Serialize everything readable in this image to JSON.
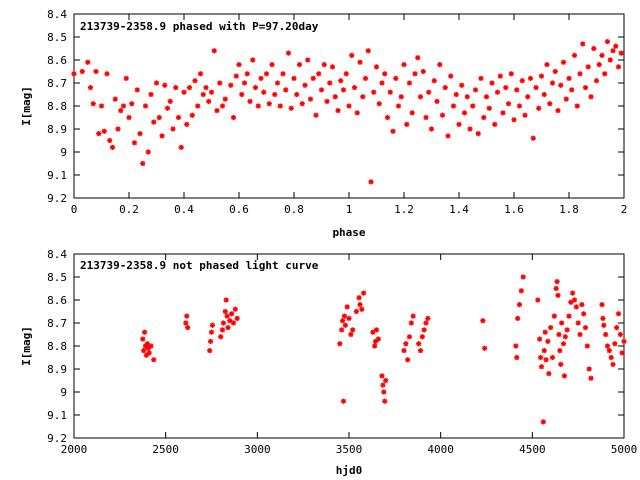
{
  "chart_data": [
    {
      "type": "scatter",
      "title": "213739-2358.9 phased with P=97.20day",
      "xlabel": "phase",
      "ylabel": "I[mag]",
      "xlim": [
        0,
        2
      ],
      "ylim": [
        9.2,
        8.4
      ],
      "y_inverted": true,
      "grid": false,
      "marker_color": "#ff0000",
      "x_ticks": [
        "0",
        "0.2",
        "0.4",
        "0.6",
        "0.8",
        "1",
        "1.2",
        "1.4",
        "1.6",
        "1.8",
        "2"
      ],
      "y_ticks": [
        "8.4",
        "8.5",
        "8.6",
        "8.7",
        "8.8",
        "8.9",
        "9",
        "9.1",
        "9.2"
      ],
      "points": [
        [
          0.0,
          8.66
        ],
        [
          0.03,
          8.65
        ],
        [
          0.05,
          8.61
        ],
        [
          0.06,
          8.72
        ],
        [
          0.07,
          8.79
        ],
        [
          0.08,
          8.65
        ],
        [
          0.09,
          8.92
        ],
        [
          0.1,
          8.8
        ],
        [
          0.11,
          8.91
        ],
        [
          0.12,
          8.66
        ],
        [
          0.13,
          8.95
        ],
        [
          0.14,
          8.98
        ],
        [
          0.15,
          8.77
        ],
        [
          0.16,
          8.9
        ],
        [
          0.17,
          8.82
        ],
        [
          0.18,
          8.8
        ],
        [
          0.19,
          8.68
        ],
        [
          0.2,
          8.85
        ],
        [
          0.21,
          8.79
        ],
        [
          0.22,
          8.96
        ],
        [
          0.23,
          8.73
        ],
        [
          0.24,
          8.92
        ],
        [
          0.25,
          9.05
        ],
        [
          0.26,
          8.8
        ],
        [
          0.27,
          9.0
        ],
        [
          0.28,
          8.75
        ],
        [
          0.29,
          8.87
        ],
        [
          0.3,
          8.7
        ],
        [
          0.31,
          8.85
        ],
        [
          0.32,
          8.93
        ],
        [
          0.33,
          8.71
        ],
        [
          0.34,
          8.81
        ],
        [
          0.35,
          8.78
        ],
        [
          0.36,
          8.9
        ],
        [
          0.37,
          8.72
        ],
        [
          0.38,
          8.85
        ],
        [
          0.39,
          8.98
        ],
        [
          0.4,
          8.74
        ],
        [
          0.41,
          8.88
        ],
        [
          0.42,
          8.72
        ],
        [
          0.43,
          8.84
        ],
        [
          0.44,
          8.69
        ],
        [
          0.45,
          8.8
        ],
        [
          0.46,
          8.66
        ],
        [
          0.47,
          8.75
        ],
        [
          0.48,
          8.72
        ],
        [
          0.49,
          8.78
        ],
        [
          0.5,
          8.74
        ],
        [
          0.51,
          8.56
        ],
        [
          0.52,
          8.82
        ],
        [
          0.53,
          8.7
        ],
        [
          0.54,
          8.8
        ],
        [
          0.55,
          8.77
        ],
        [
          0.57,
          8.71
        ],
        [
          0.58,
          8.85
        ],
        [
          0.59,
          8.67
        ],
        [
          0.6,
          8.62
        ],
        [
          0.61,
          8.75
        ],
        [
          0.62,
          8.7
        ],
        [
          0.63,
          8.66
        ],
        [
          0.64,
          8.78
        ],
        [
          0.65,
          8.6
        ],
        [
          0.66,
          8.72
        ],
        [
          0.67,
          8.8
        ],
        [
          0.68,
          8.68
        ],
        [
          0.69,
          8.74
        ],
        [
          0.7,
          8.66
        ],
        [
          0.71,
          8.79
        ],
        [
          0.72,
          8.62
        ],
        [
          0.73,
          8.75
        ],
        [
          0.74,
          8.7
        ],
        [
          0.75,
          8.8
        ],
        [
          0.76,
          8.66
        ],
        [
          0.77,
          8.73
        ],
        [
          0.78,
          8.57
        ],
        [
          0.79,
          8.81
        ],
        [
          0.8,
          8.68
        ],
        [
          0.81,
          8.75
        ],
        [
          0.82,
          8.62
        ],
        [
          0.83,
          8.79
        ],
        [
          0.84,
          8.71
        ],
        [
          0.85,
          8.6
        ],
        [
          0.86,
          8.77
        ],
        [
          0.87,
          8.68
        ],
        [
          0.88,
          8.84
        ],
        [
          0.89,
          8.66
        ],
        [
          0.9,
          8.73
        ],
        [
          0.91,
          8.62
        ],
        [
          0.92,
          8.78
        ],
        [
          0.93,
          8.7
        ],
        [
          0.94,
          8.63
        ],
        [
          0.95,
          8.76
        ],
        [
          0.96,
          8.82
        ],
        [
          0.97,
          8.69
        ],
        [
          0.98,
          8.73
        ],
        [
          0.99,
          8.66
        ],
        [
          1.0,
          8.8
        ],
        [
          1.01,
          8.58
        ],
        [
          1.02,
          8.72
        ],
        [
          1.03,
          8.83
        ],
        [
          1.04,
          8.61
        ],
        [
          1.05,
          8.76
        ],
        [
          1.06,
          8.68
        ],
        [
          1.07,
          8.56
        ],
        [
          1.08,
          9.13
        ],
        [
          1.09,
          8.74
        ],
        [
          1.1,
          8.63
        ],
        [
          1.11,
          8.79
        ],
        [
          1.12,
          8.7
        ],
        [
          1.13,
          8.66
        ],
        [
          1.14,
          8.85
        ],
        [
          1.15,
          8.74
        ],
        [
          1.16,
          8.91
        ],
        [
          1.17,
          8.68
        ],
        [
          1.18,
          8.8
        ],
        [
          1.19,
          8.76
        ],
        [
          1.2,
          8.62
        ],
        [
          1.21,
          8.88
        ],
        [
          1.22,
          8.7
        ],
        [
          1.23,
          8.83
        ],
        [
          1.24,
          8.66
        ],
        [
          1.25,
          8.59
        ],
        [
          1.26,
          8.76
        ],
        [
          1.27,
          8.65
        ],
        [
          1.28,
          8.85
        ],
        [
          1.29,
          8.74
        ],
        [
          1.3,
          8.9
        ],
        [
          1.31,
          8.69
        ],
        [
          1.32,
          8.78
        ],
        [
          1.33,
          8.62
        ],
        [
          1.34,
          8.84
        ],
        [
          1.35,
          8.72
        ],
        [
          1.36,
          8.93
        ],
        [
          1.37,
          8.67
        ],
        [
          1.38,
          8.8
        ],
        [
          1.39,
          8.75
        ],
        [
          1.4,
          8.88
        ],
        [
          1.41,
          8.71
        ],
        [
          1.42,
          8.83
        ],
        [
          1.43,
          8.76
        ],
        [
          1.44,
          8.9
        ],
        [
          1.45,
          8.8
        ],
        [
          1.46,
          8.73
        ],
        [
          1.47,
          8.92
        ],
        [
          1.48,
          8.68
        ],
        [
          1.49,
          8.85
        ],
        [
          1.5,
          8.76
        ],
        [
          1.51,
          8.81
        ],
        [
          1.52,
          8.7
        ],
        [
          1.53,
          8.88
        ],
        [
          1.54,
          8.74
        ],
        [
          1.55,
          8.67
        ],
        [
          1.56,
          8.83
        ],
        [
          1.57,
          8.72
        ],
        [
          1.58,
          8.79
        ],
        [
          1.59,
          8.66
        ],
        [
          1.6,
          8.86
        ],
        [
          1.61,
          8.73
        ],
        [
          1.62,
          8.8
        ],
        [
          1.63,
          8.69
        ],
        [
          1.64,
          8.84
        ],
        [
          1.65,
          8.76
        ],
        [
          1.66,
          8.68
        ],
        [
          1.67,
          8.94
        ],
        [
          1.68,
          8.72
        ],
        [
          1.69,
          8.81
        ],
        [
          1.7,
          8.67
        ],
        [
          1.71,
          8.75
        ],
        [
          1.72,
          8.62
        ],
        [
          1.73,
          8.79
        ],
        [
          1.74,
          8.7
        ],
        [
          1.75,
          8.65
        ],
        [
          1.76,
          8.82
        ],
        [
          1.77,
          8.71
        ],
        [
          1.78,
          8.61
        ],
        [
          1.79,
          8.77
        ],
        [
          1.8,
          8.68
        ],
        [
          1.81,
          8.73
        ],
        [
          1.82,
          8.58
        ],
        [
          1.83,
          8.8
        ],
        [
          1.84,
          8.66
        ],
        [
          1.85,
          8.53
        ],
        [
          1.86,
          8.72
        ],
        [
          1.87,
          8.63
        ],
        [
          1.88,
          8.76
        ],
        [
          1.89,
          8.55
        ],
        [
          1.9,
          8.69
        ],
        [
          1.91,
          8.62
        ],
        [
          1.92,
          8.58
        ],
        [
          1.93,
          8.66
        ],
        [
          1.94,
          8.52
        ],
        [
          1.95,
          8.6
        ],
        [
          1.96,
          8.56
        ],
        [
          1.97,
          8.54
        ],
        [
          1.98,
          8.63
        ],
        [
          1.99,
          8.57
        ]
      ]
    },
    {
      "type": "scatter",
      "title": "213739-2358.9 not phased light curve",
      "xlabel": "hjd0",
      "ylabel": "I[mag]",
      "xlim": [
        2000,
        5000
      ],
      "ylim": [
        9.2,
        8.4
      ],
      "y_inverted": true,
      "grid": false,
      "marker_color": "#ff0000",
      "x_ticks": [
        "2000",
        "2500",
        "3000",
        "3500",
        "4000",
        "4500",
        "5000"
      ],
      "y_ticks": [
        "8.4",
        "8.5",
        "8.6",
        "8.7",
        "8.8",
        "8.9",
        "9",
        "9.1",
        "9.2"
      ],
      "points": [
        [
          2375,
          8.77
        ],
        [
          2380,
          8.82
        ],
        [
          2385,
          8.74
        ],
        [
          2390,
          8.8
        ],
        [
          2395,
          8.84
        ],
        [
          2400,
          8.79
        ],
        [
          2405,
          8.81
        ],
        [
          2410,
          8.83
        ],
        [
          2420,
          8.8
        ],
        [
          2435,
          8.86
        ],
        [
          2610,
          8.7
        ],
        [
          2615,
          8.67
        ],
        [
          2620,
          8.72
        ],
        [
          2740,
          8.82
        ],
        [
          2745,
          8.78
        ],
        [
          2750,
          8.74
        ],
        [
          2755,
          8.71
        ],
        [
          2800,
          8.76
        ],
        [
          2810,
          8.73
        ],
        [
          2815,
          8.7
        ],
        [
          2825,
          8.65
        ],
        [
          2830,
          8.6
        ],
        [
          2835,
          8.67
        ],
        [
          2840,
          8.72
        ],
        [
          2850,
          8.69
        ],
        [
          2860,
          8.66
        ],
        [
          2870,
          8.7
        ],
        [
          2880,
          8.64
        ],
        [
          2890,
          8.68
        ],
        [
          3450,
          8.79
        ],
        [
          3460,
          8.73
        ],
        [
          3465,
          8.69
        ],
        [
          3470,
          9.04
        ],
        [
          3475,
          8.67
        ],
        [
          3480,
          8.71
        ],
        [
          3490,
          8.63
        ],
        [
          3500,
          8.68
        ],
        [
          3510,
          8.75
        ],
        [
          3520,
          8.73
        ],
        [
          3540,
          8.65
        ],
        [
          3555,
          8.59
        ],
        [
          3560,
          8.62
        ],
        [
          3570,
          8.64
        ],
        [
          3580,
          8.57
        ],
        [
          3630,
          8.74
        ],
        [
          3640,
          8.8
        ],
        [
          3645,
          8.78
        ],
        [
          3650,
          8.73
        ],
        [
          3660,
          8.77
        ],
        [
          3680,
          8.93
        ],
        [
          3685,
          8.97
        ],
        [
          3690,
          9.0
        ],
        [
          3695,
          9.04
        ],
        [
          3700,
          8.95
        ],
        [
          3800,
          8.82
        ],
        [
          3810,
          8.79
        ],
        [
          3820,
          8.86
        ],
        [
          3830,
          8.76
        ],
        [
          3840,
          8.7
        ],
        [
          3850,
          8.67
        ],
        [
          3880,
          8.79
        ],
        [
          3890,
          8.82
        ],
        [
          3900,
          8.76
        ],
        [
          3910,
          8.73
        ],
        [
          3920,
          8.7
        ],
        [
          3930,
          8.68
        ],
        [
          4230,
          8.69
        ],
        [
          4240,
          8.81
        ],
        [
          4410,
          8.8
        ],
        [
          4415,
          8.85
        ],
        [
          4420,
          8.68
        ],
        [
          4430,
          8.62
        ],
        [
          4440,
          8.56
        ],
        [
          4450,
          8.5
        ],
        [
          4530,
          8.6
        ],
        [
          4540,
          8.77
        ],
        [
          4545,
          8.85
        ],
        [
          4550,
          8.89
        ],
        [
          4560,
          9.13
        ],
        [
          4565,
          8.82
        ],
        [
          4570,
          8.74
        ],
        [
          4575,
          8.86
        ],
        [
          4585,
          8.78
        ],
        [
          4590,
          8.92
        ],
        [
          4600,
          8.72
        ],
        [
          4610,
          8.85
        ],
        [
          4620,
          8.67
        ],
        [
          4630,
          8.55
        ],
        [
          4635,
          8.52
        ],
        [
          4640,
          8.58
        ],
        [
          4645,
          8.75
        ],
        [
          4650,
          8.82
        ],
        [
          4655,
          8.88
        ],
        [
          4660,
          8.7
        ],
        [
          4670,
          8.79
        ],
        [
          4675,
          8.93
        ],
        [
          4680,
          8.76
        ],
        [
          4690,
          8.73
        ],
        [
          4700,
          8.67
        ],
        [
          4710,
          8.61
        ],
        [
          4720,
          8.57
        ],
        [
          4730,
          8.6
        ],
        [
          4740,
          8.63
        ],
        [
          4750,
          8.7
        ],
        [
          4760,
          8.75
        ],
        [
          4770,
          8.62
        ],
        [
          4780,
          8.66
        ],
        [
          4790,
          8.72
        ],
        [
          4800,
          8.8
        ],
        [
          4810,
          8.9
        ],
        [
          4820,
          8.94
        ],
        [
          4880,
          8.62
        ],
        [
          4885,
          8.68
        ],
        [
          4890,
          8.71
        ],
        [
          4900,
          8.75
        ],
        [
          4910,
          8.8
        ],
        [
          4920,
          8.82
        ],
        [
          4930,
          8.85
        ],
        [
          4940,
          8.88
        ],
        [
          4950,
          8.79
        ],
        [
          4960,
          8.72
        ],
        [
          4970,
          8.66
        ],
        [
          4980,
          8.75
        ],
        [
          4990,
          8.83
        ],
        [
          5000,
          8.78
        ]
      ]
    }
  ]
}
